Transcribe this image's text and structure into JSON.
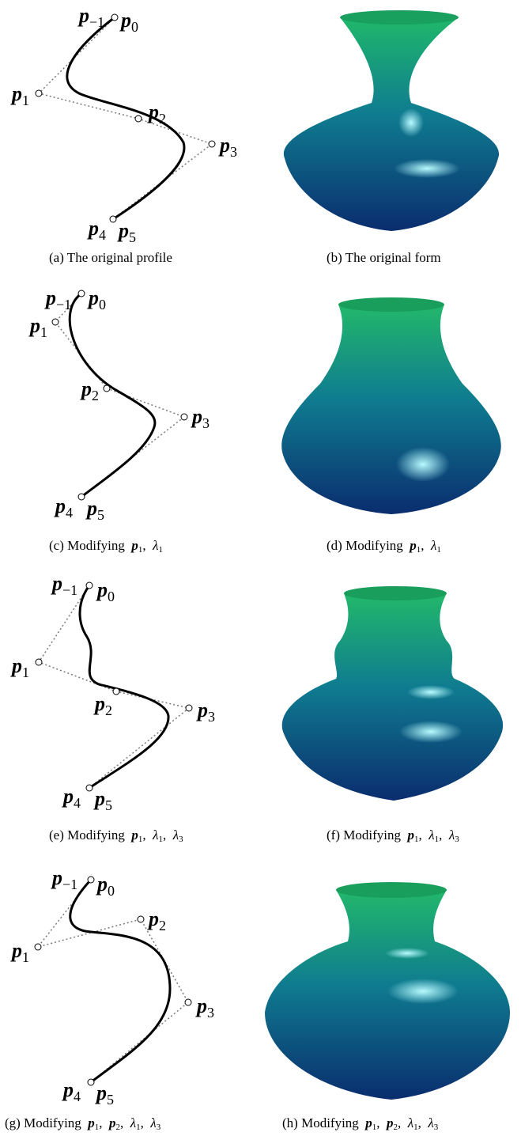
{
  "labels": {
    "pm1_main": "p",
    "pm1_sub": "−1",
    "p0_main": "p",
    "p0_sub": "0",
    "p1_main": "p",
    "p1_sub": "1",
    "p2_main": "p",
    "p2_sub": "2",
    "p3_main": "p",
    "p3_sub": "3",
    "p4_main": "p",
    "p4_sub": "4",
    "p5_main": "p",
    "p5_sub": "5"
  },
  "captions": {
    "a": "(a) The original profile",
    "b": "(b) The original form",
    "c_prefix": "(c) Modifying",
    "d_prefix": "(d) Modifying",
    "e_prefix": "(e) Modifying",
    "f_prefix": "(f) Modifying",
    "g_prefix": "(g) Modifying",
    "h_prefix": "(h) Modifying"
  },
  "symbols": {
    "p": "p",
    "lambda": "λ",
    "comma": ",",
    "sub1": "1",
    "sub2": "2",
    "sub3": "3"
  },
  "colors": {
    "curve": "#000000",
    "polygon": "#7a7a7a",
    "vase_top": "#1fb86a",
    "vase_bottom": "#0a2d6e",
    "highlight": "#b8fbff"
  }
}
